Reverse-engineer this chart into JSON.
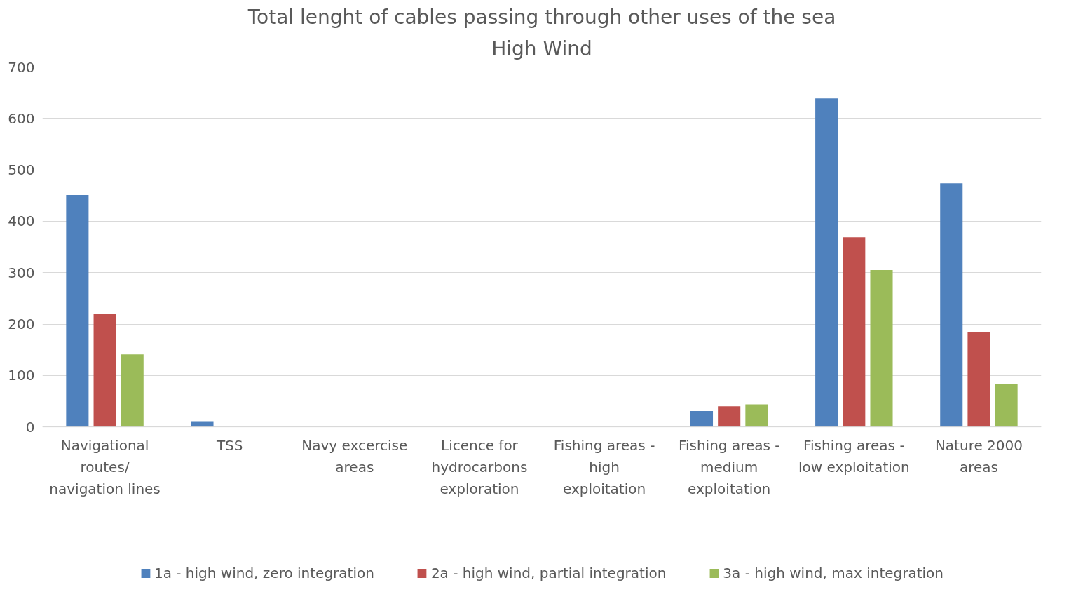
{
  "chart_data": {
    "type": "bar",
    "title": "Total lenght of cables passing through other uses of the sea",
    "subtitle": "High Wind",
    "categories": [
      "Navigational routes/ navigation lines",
      "TSS",
      "Navy excercise areas",
      "Licence for hydrocarbons exploration",
      "Fishing areas - high exploitation",
      "Fishing areas - medium exploitation",
      "Fishing areas - low exploitation",
      "Nature 2000 areas"
    ],
    "series": [
      {
        "name": "1a - high wind, zero integration",
        "color": "#4f81bd",
        "values": [
          451,
          11,
          0,
          0,
          0,
          31,
          639,
          474
        ]
      },
      {
        "name": "2a - high wind, partial integration",
        "color": "#c0504d",
        "values": [
          220,
          0,
          0,
          0,
          0,
          40,
          369,
          185
        ]
      },
      {
        "name": "3a - high wind, max integration",
        "color": "#9bbb59",
        "values": [
          141,
          0,
          0,
          0,
          0,
          44,
          305,
          84
        ]
      }
    ],
    "ylim": [
      0,
      700
    ],
    "yticks": [
      0,
      100,
      200,
      300,
      400,
      500,
      600,
      700
    ],
    "grid": "y",
    "legend": "bottom"
  }
}
